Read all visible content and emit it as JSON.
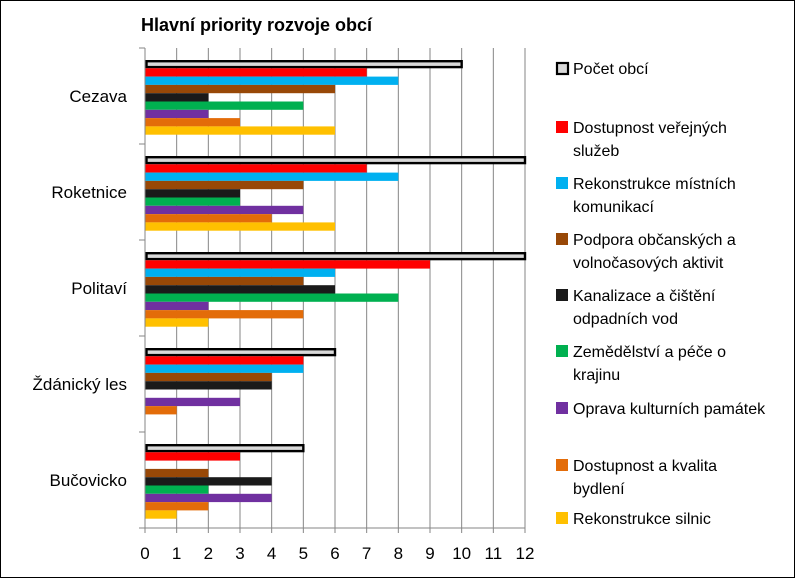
{
  "chart_data": {
    "type": "bar",
    "orientation": "horizontal",
    "title": "Hlavní priority rozvoje obcí",
    "categories": [
      "Cezava",
      "Roketnice",
      "Politaví",
      "Ždánický les",
      "Bučovicko"
    ],
    "xlim": [
      0,
      12
    ],
    "xticks": [
      0,
      1,
      2,
      3,
      4,
      5,
      6,
      7,
      8,
      9,
      10,
      11,
      12
    ],
    "grid": "vertical",
    "legend_position": "right",
    "series": [
      {
        "name": "Počet obcí",
        "color": "#d9d9d9",
        "outline": "#000000",
        "values": [
          10,
          12,
          12,
          6,
          5
        ]
      },
      {
        "name": "Dostupnost veřejných služeb",
        "color": "#ff0000",
        "values": [
          7,
          7,
          9,
          5,
          3
        ]
      },
      {
        "name": "Rekonstrukce místních komunikací",
        "color": "#00b0f0",
        "values": [
          8,
          8,
          6,
          5,
          0
        ]
      },
      {
        "name": "Podpora občanských  a volnočasových aktivit",
        "color": "#984807",
        "values": [
          6,
          5,
          5,
          4,
          2
        ]
      },
      {
        "name": "Kanalizace a čištění odpadních vod",
        "color": "#1a1a1a",
        "values": [
          2,
          3,
          6,
          4,
          4
        ]
      },
      {
        "name": "Zemědělství a péče o krajinu",
        "color": "#00b050",
        "values": [
          5,
          3,
          8,
          0,
          2
        ]
      },
      {
        "name": "Oprava kulturních památek",
        "color": "#7030a0",
        "values": [
          2,
          5,
          2,
          3,
          4
        ]
      },
      {
        "name": "Dostupnost a kvalita bydlení",
        "color": "#e36c09",
        "values": [
          3,
          4,
          5,
          1,
          2
        ]
      },
      {
        "name": "Rekonstrukce  silnic",
        "color": "#ffc000",
        "values": [
          6,
          6,
          2,
          0,
          1
        ]
      }
    ]
  }
}
